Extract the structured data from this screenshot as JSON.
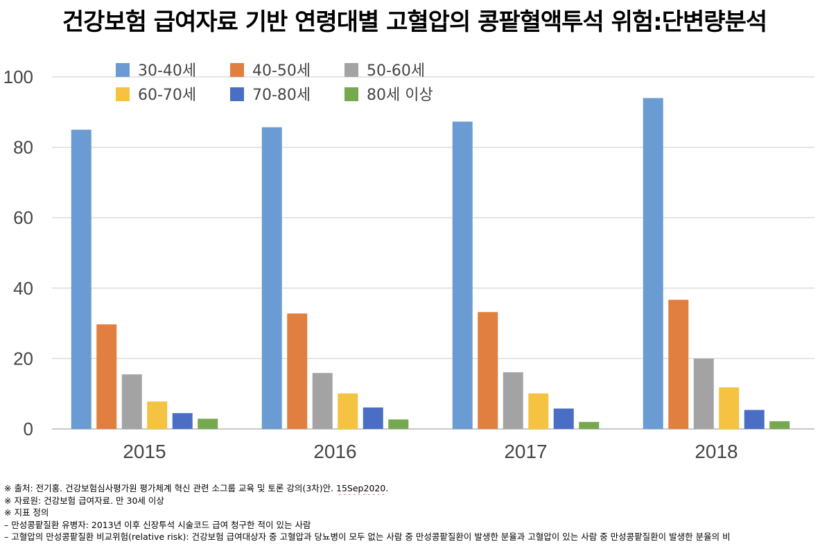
{
  "title": "건강보험 급여자료 기반 연령대별 고혈압의 콩팥혈액투석 위험:단변량분석",
  "chart_data": {
    "type": "bar",
    "categories": [
      "2015",
      "2016",
      "2017",
      "2018"
    ],
    "ylim": [
      0,
      100
    ],
    "yticks": [
      0,
      20,
      40,
      60,
      80,
      100
    ],
    "grid": true,
    "legend_position": "top-left",
    "series": [
      {
        "name": "30-40세",
        "color": "#6a9bd3",
        "values": [
          85,
          85.7,
          87.3,
          94
        ]
      },
      {
        "name": "40-50세",
        "color": "#e07f3f",
        "values": [
          29.7,
          32.8,
          33.2,
          36.7
        ]
      },
      {
        "name": "50-60세",
        "color": "#a3a3a3",
        "values": [
          15.5,
          15.9,
          16.1,
          20
        ]
      },
      {
        "name": "60-70세",
        "color": "#f5c242",
        "values": [
          7.8,
          10.1,
          10.1,
          11.8
        ]
      },
      {
        "name": "70-80세",
        "color": "#4a6ec4",
        "values": [
          4.5,
          6.1,
          5.8,
          5.4
        ]
      },
      {
        "name": "80세 이상",
        "color": "#76a850",
        "values": [
          2.9,
          2.7,
          2.0,
          2.2
        ]
      }
    ]
  },
  "notes": {
    "source_prefix": "※ 출처: 전기홍. 건강보험심사평가원 평가체계 혁신 관련 소그룹 교육 및 토론 강의(3차)안. ",
    "source_date": "15Sep2020",
    "source_suffix": ".",
    "data_source": "※ 자료원: 건강보험 급여자료. 만 30세 이상",
    "definition_header": "※ 지표 정의",
    "def_1": "– 만성콩팥질환 유병자: 2013년 이후  신장투석 시술코드 급여 청구한 적이 있는 사람",
    "def_2": "– 고혈압의 만성콩팥질환 비교위험(relative risk): 건강보험 급여대상자 중 고혈압과 당뇨병이 모두 없는 사람 중 만성콩팥질환이 발생한 분율과 고혈압이 있는 사람 중 만성콩팥질환이 발생한 분율의 비"
  }
}
